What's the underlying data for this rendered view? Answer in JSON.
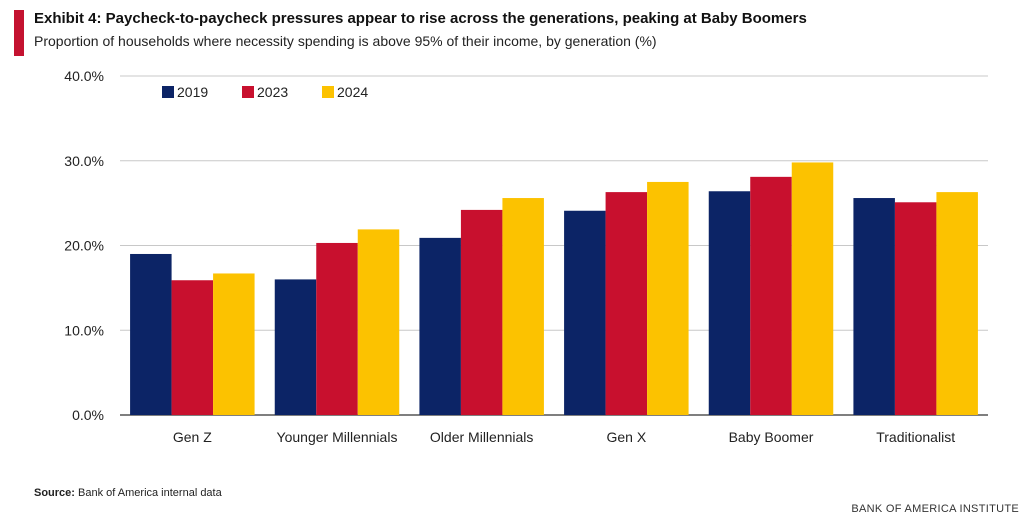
{
  "header": {
    "title": "Exhibit 4: Paycheck-to-paycheck pressures appear to rise across the generations, peaking at Baby Boomers",
    "subtitle": "Proportion of households where necessity spending is above 95% of their income, by generation (%)"
  },
  "footer": {
    "source_label": "Source:",
    "source_text": "Bank of America internal data",
    "brand": "BANK OF AMERICA INSTITUTE"
  },
  "colors": {
    "accent": "#c41230",
    "s2019": "#0c2466",
    "s2023": "#c8102e",
    "s2024": "#fcc200"
  },
  "chart_data": {
    "type": "bar",
    "title": "Exhibit 4: Paycheck-to-paycheck pressures appear to rise across the generations, peaking at Baby Boomers",
    "xlabel": "",
    "ylabel": "",
    "ylim": [
      0,
      40
    ],
    "y_ticks": [
      "0.0%",
      "10.0%",
      "20.0%",
      "30.0%",
      "40.0%"
    ],
    "grid": true,
    "legend_position": "top-left",
    "categories": [
      "Gen Z",
      "Younger Millennials",
      "Older Millennials",
      "Gen X",
      "Baby Boomer",
      "Traditionalist"
    ],
    "series": [
      {
        "name": "2019",
        "color": "#0c2466",
        "values": [
          19.0,
          16.0,
          20.9,
          24.1,
          26.4,
          25.6
        ]
      },
      {
        "name": "2023",
        "color": "#c8102e",
        "values": [
          15.9,
          20.3,
          24.2,
          26.3,
          28.1,
          25.1
        ]
      },
      {
        "name": "2024",
        "color": "#fcc200",
        "values": [
          16.7,
          21.9,
          25.6,
          27.5,
          29.8,
          26.3
        ]
      }
    ]
  }
}
